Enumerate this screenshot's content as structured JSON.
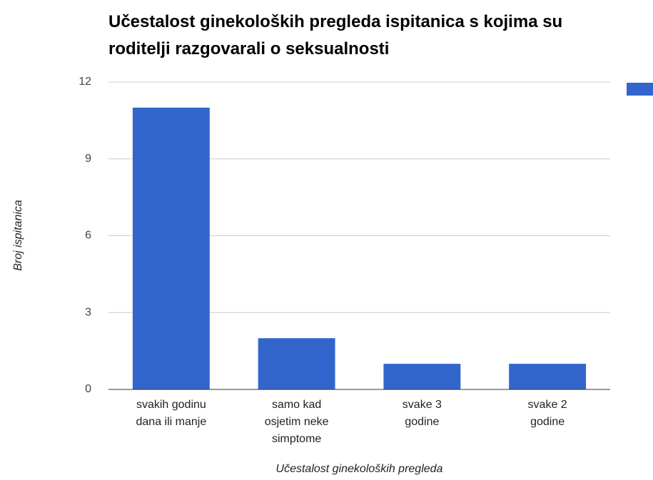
{
  "chart_data": {
    "type": "bar",
    "title": "Učestalost ginekoloških pregleda ispitanica s kojima su roditelji razgovarali o seksualnosti",
    "x_label": "Učestalost ginekoloških pregleda",
    "y_label": "Broj ispitanica",
    "categories": [
      "svakih godinu\ndana ili manje",
      "samo kad\nosjetim neke\nsimptome",
      "svake 3\ngodine",
      "svake 2\ngodine"
    ],
    "values": [
      11,
      2,
      1,
      1
    ],
    "color": "#3366cc",
    "ylim": [
      0,
      12
    ],
    "yticks": [
      0,
      3,
      6,
      9,
      12
    ],
    "grid": true
  }
}
